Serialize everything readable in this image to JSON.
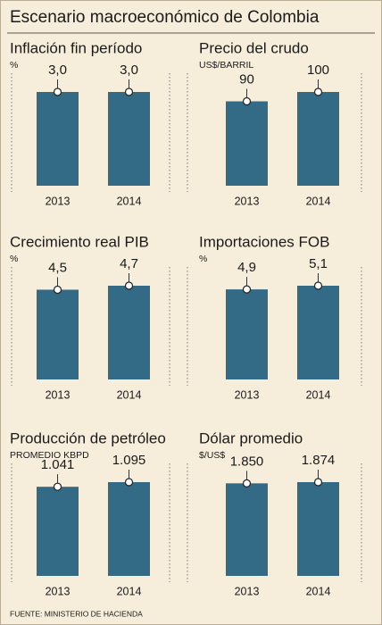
{
  "title": "Escenario macroeconómico de Colombia",
  "source": "FUENTE: MINISTERIO DE HACIENDA",
  "chart_data": [
    {
      "type": "bar",
      "title": "Inflación fin período",
      "unit": "%",
      "categories": [
        "2013",
        "2014"
      ],
      "values": [
        3.0,
        3.0
      ],
      "value_labels": [
        "3,0",
        "3,0"
      ],
      "color": "#336b87"
    },
    {
      "type": "bar",
      "title": "Precio del crudo",
      "unit": "US$/BARRIL",
      "categories": [
        "2013",
        "2014"
      ],
      "values": [
        90,
        100
      ],
      "color": "#336b87"
    },
    {
      "type": "bar",
      "title": "Crecimiento real PIB",
      "unit": "%",
      "categories": [
        "2013",
        "2014"
      ],
      "values": [
        4.5,
        4.7
      ],
      "value_labels": [
        "4,5",
        "4,7"
      ],
      "color": "#336b87"
    },
    {
      "type": "bar",
      "title": "Importaciones FOB",
      "unit": "%",
      "categories": [
        "2013",
        "2014"
      ],
      "values": [
        4.9,
        5.1
      ],
      "value_labels": [
        "4,9",
        "5,1"
      ],
      "color": "#336b87"
    },
    {
      "type": "bar",
      "title": "Producción de petróleo",
      "unit": "PROMEDIO KBPD",
      "categories": [
        "2013",
        "2014"
      ],
      "values": [
        1041,
        1095
      ],
      "value_labels": [
        "1.041",
        "1.095"
      ],
      "color": "#336b87"
    },
    {
      "type": "bar",
      "title": "Dólar promedio",
      "unit": "$/US$",
      "categories": [
        "2013",
        "2014"
      ],
      "values": [
        1850,
        1874
      ],
      "value_labels": [
        "1.850",
        "1.874"
      ],
      "color": "#336b87"
    }
  ]
}
